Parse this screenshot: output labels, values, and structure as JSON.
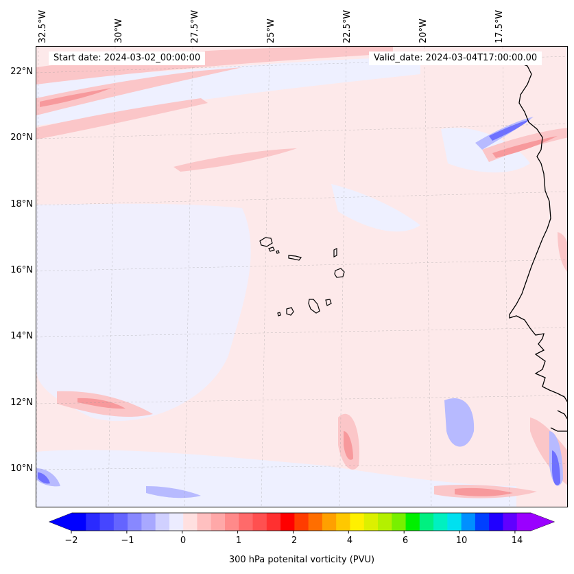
{
  "map": {
    "start_date": "Start date: 2024-03-02_00:00:00",
    "valid_date": "Valid_date: 2024-03-04T17:00:00.00",
    "lon_labels": [
      "32.5°W",
      "30°W",
      "27.5°W",
      "25°W",
      "22.5°W",
      "20°W",
      "17.5°W"
    ],
    "lat_labels": [
      "22°N",
      "20°N",
      "18°N",
      "16°N",
      "14°N",
      "12°N",
      "10°N"
    ],
    "region": "Cape Verde and West African coast",
    "colors": {
      "background_pink": "#fde9ea",
      "light_blue": "#eef0ff",
      "mid_pink": "#fbc6c8",
      "deep_pink": "#f7999c",
      "blue": "#b7baff",
      "deep_blue": "#6e70ff",
      "coast": "#000000"
    }
  },
  "colorbar": {
    "title": "300 hPa potenital vorticity (PVU)",
    "tick_labels": [
      "−2",
      "−1",
      "0",
      "1",
      "2",
      "4",
      "6",
      "10",
      "14"
    ],
    "colors": [
      "#0000ff",
      "#2a2aff",
      "#4646ff",
      "#6464ff",
      "#8888ff",
      "#a8a8ff",
      "#d0d0ff",
      "#ececff",
      "#ffe0e0",
      "#ffc0c0",
      "#ffa8a8",
      "#ff8a8a",
      "#ff6a6a",
      "#ff5050",
      "#ff3030",
      "#ff0000",
      "#ff3c00",
      "#ff6e00",
      "#ffa000",
      "#ffc800",
      "#fff000",
      "#dcf000",
      "#b4f000",
      "#78f000",
      "#00f000",
      "#00f080",
      "#00f0c0",
      "#00e0f0",
      "#0090ff",
      "#0040ff",
      "#2000ff",
      "#6000ff",
      "#9a00ff"
    ]
  }
}
